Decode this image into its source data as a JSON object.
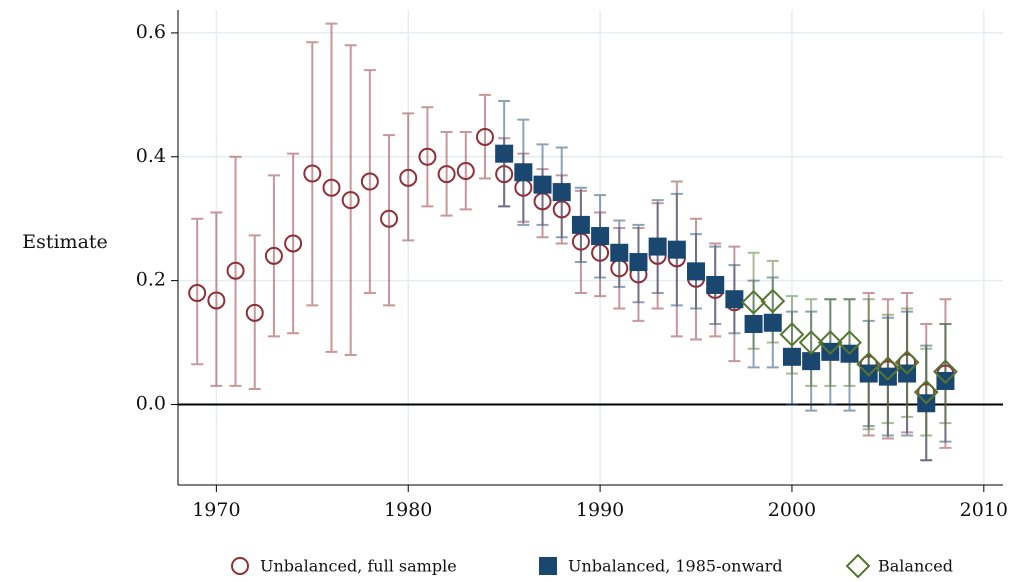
{
  "chart_data": {
    "type": "scatter",
    "ylabel": "Estimate",
    "xlim": [
      1968,
      2011
    ],
    "xticks": [
      1970,
      1980,
      1990,
      2000,
      2010
    ],
    "ylim": [
      -0.13,
      0.637
    ],
    "yticks": [
      {
        "value": 0,
        "label": "0.0"
      },
      0.2,
      0.4,
      0.6
    ],
    "grid": true,
    "legend": "bottom",
    "series": [
      {
        "name": "Unbalanced, full sample",
        "marker": "circle",
        "color": "#8f2f38",
        "x": [
          1969,
          1970,
          1971,
          1972,
          1973,
          1974,
          1975,
          1976,
          1977,
          1978,
          1979,
          1980,
          1981,
          1982,
          1983,
          1984,
          1985,
          1986,
          1987,
          1988,
          1989,
          1990,
          1991,
          1992,
          1993,
          1994,
          1995,
          1996,
          1997,
          2004,
          2005,
          2006,
          2007,
          2008
        ],
        "values": [
          0.18,
          0.168,
          0.216,
          0.148,
          0.24,
          0.26,
          0.373,
          0.35,
          0.33,
          0.36,
          0.3,
          0.366,
          0.4,
          0.372,
          0.377,
          0.432,
          0.372,
          0.35,
          0.328,
          0.315,
          0.263,
          0.245,
          0.22,
          0.21,
          0.24,
          0.236,
          0.203,
          0.185,
          0.165,
          0.065,
          0.057,
          0.068,
          0.02,
          0.05
        ],
        "lower": [
          0.065,
          0.03,
          0.03,
          0.025,
          0.11,
          0.115,
          0.16,
          0.085,
          0.08,
          0.18,
          0.16,
          0.265,
          0.32,
          0.305,
          0.315,
          0.365,
          0.32,
          0.295,
          0.27,
          0.26,
          0.18,
          0.175,
          0.155,
          0.135,
          0.155,
          0.11,
          0.105,
          0.11,
          0.07,
          -0.05,
          -0.055,
          -0.045,
          -0.09,
          -0.07
        ],
        "upper": [
          0.3,
          0.31,
          0.4,
          0.273,
          0.37,
          0.405,
          0.585,
          0.615,
          0.58,
          0.54,
          0.435,
          0.47,
          0.48,
          0.44,
          0.44,
          0.5,
          0.43,
          0.405,
          0.38,
          0.37,
          0.345,
          0.31,
          0.285,
          0.285,
          0.325,
          0.36,
          0.3,
          0.26,
          0.255,
          0.18,
          0.17,
          0.18,
          0.13,
          0.17
        ]
      },
      {
        "name": "Unbalanced, 1985-onward",
        "marker": "square",
        "color": "#1a476f",
        "x": [
          1985,
          1986,
          1987,
          1988,
          1989,
          1990,
          1991,
          1992,
          1993,
          1994,
          1995,
          1996,
          1997,
          1998,
          1999,
          2000,
          2001,
          2002,
          2003,
          2004,
          2005,
          2006,
          2007,
          2008
        ],
        "values": [
          0.405,
          0.375,
          0.355,
          0.343,
          0.29,
          0.272,
          0.245,
          0.23,
          0.255,
          0.25,
          0.215,
          0.193,
          0.17,
          0.13,
          0.132,
          0.077,
          0.07,
          0.085,
          0.082,
          0.05,
          0.045,
          0.05,
          0.002,
          0.038
        ],
        "lower": [
          0.32,
          0.29,
          0.29,
          0.27,
          0.23,
          0.205,
          0.19,
          0.165,
          0.18,
          0.16,
          0.155,
          0.13,
          0.115,
          0.06,
          0.06,
          0,
          -0.01,
          0,
          -0.01,
          -0.035,
          -0.05,
          -0.05,
          -0.09,
          -0.06
        ],
        "upper": [
          0.49,
          0.46,
          0.42,
          0.415,
          0.35,
          0.338,
          0.297,
          0.29,
          0.33,
          0.34,
          0.275,
          0.255,
          0.225,
          0.2,
          0.205,
          0.15,
          0.15,
          0.17,
          0.17,
          0.135,
          0.14,
          0.15,
          0.095,
          0.13
        ]
      },
      {
        "name": "Balanced",
        "marker": "diamond",
        "color": "#55752f",
        "x": [
          1998,
          1999,
          2000,
          2001,
          2002,
          2003,
          2004,
          2005,
          2006,
          2007,
          2008
        ],
        "values": [
          0.165,
          0.167,
          0.113,
          0.1,
          0.1,
          0.1,
          0.065,
          0.058,
          0.068,
          0.02,
          0.053
        ],
        "lower": [
          0.09,
          0.1,
          0.05,
          0.03,
          0.03,
          0.03,
          -0.04,
          -0.03,
          -0.02,
          -0.05,
          -0.03
        ],
        "upper": [
          0.245,
          0.232,
          0.175,
          0.17,
          0.17,
          0.17,
          0.17,
          0.145,
          0.155,
          0.09,
          0.13
        ]
      }
    ]
  }
}
